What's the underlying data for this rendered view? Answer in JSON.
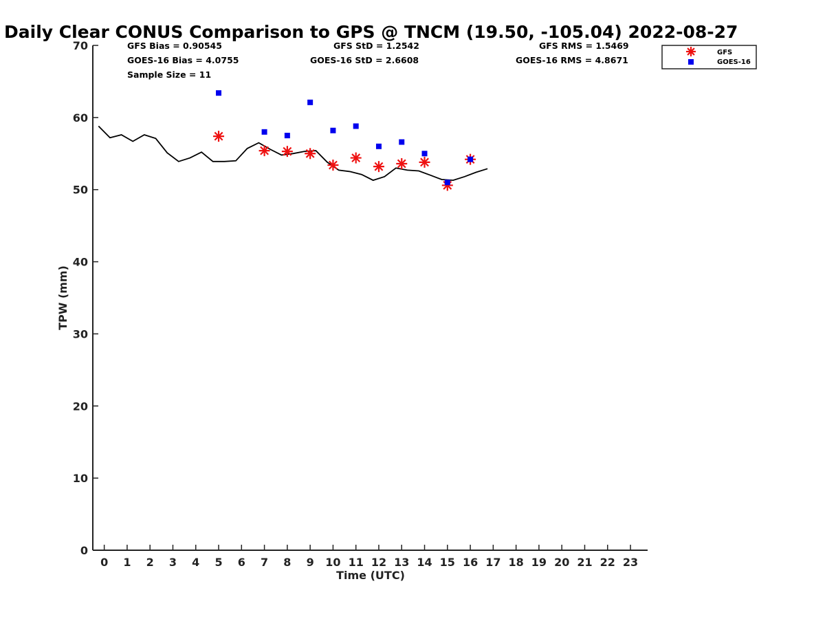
{
  "chart_data": {
    "type": "scatter",
    "title": "Daily Clear CONUS Comparison to GPS @ TNCM (19.50, -105.04) 2022-08-27",
    "xlabel": "Time (UTC)",
    "ylabel": "TPW (mm)",
    "xlim": [
      -0.5,
      23.75
    ],
    "ylim": [
      0,
      70
    ],
    "x_ticks": [
      "0",
      "1",
      "2",
      "3",
      "4",
      "5",
      "6",
      "7",
      "8",
      "9",
      "10",
      "11",
      "12",
      "13",
      "14",
      "15",
      "16",
      "17",
      "18",
      "19",
      "20",
      "21",
      "22",
      "23"
    ],
    "y_ticks": [
      "0",
      "10",
      "20",
      "30",
      "40",
      "50",
      "60",
      "70"
    ],
    "grid": false,
    "legend_position": "top-right",
    "stats": {
      "gfs_bias": "GFS Bias = 0.90545",
      "goes_bias": "GOES-16 Bias = 4.0755",
      "sample_size": "Sample Size = 11",
      "gfs_std": "GFS StD = 1.2542",
      "goes_std": "GOES-16 StD = 2.6608",
      "gfs_rms": "GFS RMS = 1.5469",
      "goes_rms": "GOES-16 RMS = 4.8671"
    },
    "series": [
      {
        "kind": "line",
        "color": "#000000",
        "x": [
          -0.25,
          0.25,
          0.75,
          1.25,
          1.75,
          2.25,
          2.75,
          3.25,
          3.75,
          4.25,
          4.75,
          5.25,
          5.75,
          6.25,
          6.75,
          7.25,
          7.75,
          8.25,
          8.75,
          9.25,
          9.75,
          10.25,
          10.75,
          11.25,
          11.75,
          12.25,
          12.75,
          13.25,
          13.75,
          14.25,
          14.75,
          15.25,
          15.75,
          16.25,
          16.75
        ],
        "y": [
          58.8,
          57.2,
          57.6,
          56.7,
          57.6,
          57.1,
          55.1,
          53.9,
          54.4,
          55.2,
          53.9,
          53.9,
          54.0,
          55.7,
          56.5,
          55.6,
          54.8,
          55.0,
          55.3,
          55.4,
          53.8,
          52.7,
          52.5,
          52.1,
          51.3,
          51.8,
          53.0,
          52.7,
          52.6,
          52.0,
          51.4,
          51.3,
          51.8,
          52.4,
          52.9
        ]
      },
      {
        "name": "GFS",
        "kind": "asterisk",
        "color": "#ee1111",
        "x": [
          5,
          7,
          8,
          9,
          10,
          11,
          12,
          13,
          14,
          15,
          16
        ],
        "y": [
          57.4,
          55.4,
          55.3,
          55.0,
          53.4,
          54.4,
          53.2,
          53.6,
          53.8,
          50.6,
          54.2
        ]
      },
      {
        "name": "GOES-16",
        "kind": "square",
        "color": "#0000ee",
        "x": [
          5,
          7,
          8,
          9,
          10,
          11,
          12,
          13,
          14,
          15,
          16
        ],
        "y": [
          63.4,
          58.0,
          57.5,
          62.1,
          58.2,
          58.8,
          56.0,
          56.6,
          55.0,
          51.0,
          54.2
        ]
      }
    ]
  }
}
